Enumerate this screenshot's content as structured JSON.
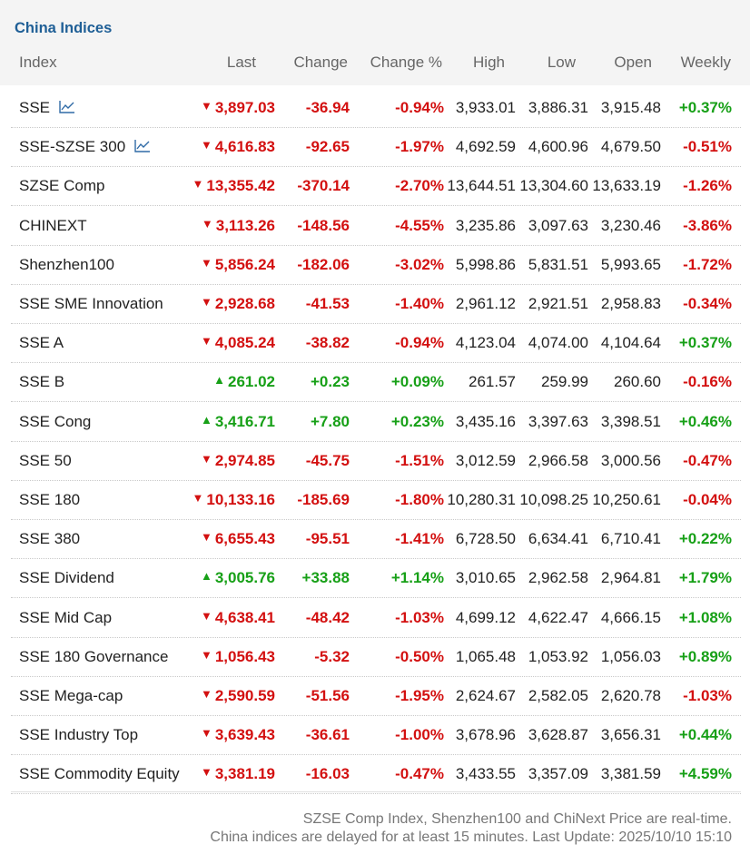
{
  "title": "China Indices",
  "columns": {
    "index": "Index",
    "last": "Last",
    "change": "Change",
    "change_pct": "Change %",
    "high": "High",
    "low": "Low",
    "open": "Open",
    "weekly": "Weekly"
  },
  "colors": {
    "up": "#17a017",
    "down": "#d31010",
    "title": "#1f5f96"
  },
  "rows": [
    {
      "name": "SSE",
      "chart": true,
      "dir": "down",
      "last": "3,897.03",
      "change": "-36.94",
      "pct": "-0.94%",
      "high": "3,933.01",
      "low": "3,886.31",
      "open": "3,915.48",
      "weekly": "+0.37%",
      "wdir": "up"
    },
    {
      "name": "SSE-SZSE 300",
      "chart": true,
      "dir": "down",
      "last": "4,616.83",
      "change": "-92.65",
      "pct": "-1.97%",
      "high": "4,692.59",
      "low": "4,600.96",
      "open": "4,679.50",
      "weekly": "-0.51%",
      "wdir": "down"
    },
    {
      "name": "SZSE Comp",
      "chart": false,
      "dir": "down",
      "last": "13,355.42",
      "change": "-370.14",
      "pct": "-2.70%",
      "high": "13,644.51",
      "low": "13,304.60",
      "open": "13,633.19",
      "weekly": "-1.26%",
      "wdir": "down"
    },
    {
      "name": "CHINEXT",
      "chart": false,
      "dir": "down",
      "last": "3,113.26",
      "change": "-148.56",
      "pct": "-4.55%",
      "high": "3,235.86",
      "low": "3,097.63",
      "open": "3,230.46",
      "weekly": "-3.86%",
      "wdir": "down"
    },
    {
      "name": "Shenzhen100",
      "chart": false,
      "dir": "down",
      "last": "5,856.24",
      "change": "-182.06",
      "pct": "-3.02%",
      "high": "5,998.86",
      "low": "5,831.51",
      "open": "5,993.65",
      "weekly": "-1.72%",
      "wdir": "down"
    },
    {
      "name": "SSE SME Innovation",
      "chart": false,
      "dir": "down",
      "last": "2,928.68",
      "change": "-41.53",
      "pct": "-1.40%",
      "high": "2,961.12",
      "low": "2,921.51",
      "open": "2,958.83",
      "weekly": "-0.34%",
      "wdir": "down"
    },
    {
      "name": "SSE A",
      "chart": false,
      "dir": "down",
      "last": "4,085.24",
      "change": "-38.82",
      "pct": "-0.94%",
      "high": "4,123.04",
      "low": "4,074.00",
      "open": "4,104.64",
      "weekly": "+0.37%",
      "wdir": "up"
    },
    {
      "name": "SSE B",
      "chart": false,
      "dir": "up",
      "last": "261.02",
      "change": "+0.23",
      "pct": "+0.09%",
      "high": "261.57",
      "low": "259.99",
      "open": "260.60",
      "weekly": "-0.16%",
      "wdir": "down"
    },
    {
      "name": "SSE Cong",
      "chart": false,
      "dir": "up",
      "last": "3,416.71",
      "change": "+7.80",
      "pct": "+0.23%",
      "high": "3,435.16",
      "low": "3,397.63",
      "open": "3,398.51",
      "weekly": "+0.46%",
      "wdir": "up"
    },
    {
      "name": "SSE 50",
      "chart": false,
      "dir": "down",
      "last": "2,974.85",
      "change": "-45.75",
      "pct": "-1.51%",
      "high": "3,012.59",
      "low": "2,966.58",
      "open": "3,000.56",
      "weekly": "-0.47%",
      "wdir": "down"
    },
    {
      "name": "SSE 180",
      "chart": false,
      "dir": "down",
      "last": "10,133.16",
      "change": "-185.69",
      "pct": "-1.80%",
      "high": "10,280.31",
      "low": "10,098.25",
      "open": "10,250.61",
      "weekly": "-0.04%",
      "wdir": "down"
    },
    {
      "name": "SSE 380",
      "chart": false,
      "dir": "down",
      "last": "6,655.43",
      "change": "-95.51",
      "pct": "-1.41%",
      "high": "6,728.50",
      "low": "6,634.41",
      "open": "6,710.41",
      "weekly": "+0.22%",
      "wdir": "up"
    },
    {
      "name": "SSE Dividend",
      "chart": false,
      "dir": "up",
      "last": "3,005.76",
      "change": "+33.88",
      "pct": "+1.14%",
      "high": "3,010.65",
      "low": "2,962.58",
      "open": "2,964.81",
      "weekly": "+1.79%",
      "wdir": "up"
    },
    {
      "name": "SSE Mid Cap",
      "chart": false,
      "dir": "down",
      "last": "4,638.41",
      "change": "-48.42",
      "pct": "-1.03%",
      "high": "4,699.12",
      "low": "4,622.47",
      "open": "4,666.15",
      "weekly": "+1.08%",
      "wdir": "up"
    },
    {
      "name": "SSE 180 Governance",
      "chart": false,
      "dir": "down",
      "last": "1,056.43",
      "change": "-5.32",
      "pct": "-0.50%",
      "high": "1,065.48",
      "low": "1,053.92",
      "open": "1,056.03",
      "weekly": "+0.89%",
      "wdir": "up"
    },
    {
      "name": "SSE Mega-cap",
      "chart": false,
      "dir": "down",
      "last": "2,590.59",
      "change": "-51.56",
      "pct": "-1.95%",
      "high": "2,624.67",
      "low": "2,582.05",
      "open": "2,620.78",
      "weekly": "-1.03%",
      "wdir": "down"
    },
    {
      "name": "SSE Industry Top",
      "chart": false,
      "dir": "down",
      "last": "3,639.43",
      "change": "-36.61",
      "pct": "-1.00%",
      "high": "3,678.96",
      "low": "3,628.87",
      "open": "3,656.31",
      "weekly": "+0.44%",
      "wdir": "up"
    },
    {
      "name": "SSE Commodity Equity",
      "chart": false,
      "dir": "down",
      "last": "3,381.19",
      "change": "-16.03",
      "pct": "-0.47%",
      "high": "3,433.55",
      "low": "3,357.09",
      "open": "3,381.59",
      "weekly": "+4.59%",
      "wdir": "up"
    }
  ],
  "footer": {
    "line1": "SZSE Comp Index, Shenzhen100 and ChiNext Price are real-time.",
    "line2": "China indices are delayed for at least 15 minutes. Last Update: 2025/10/10 15:10"
  }
}
